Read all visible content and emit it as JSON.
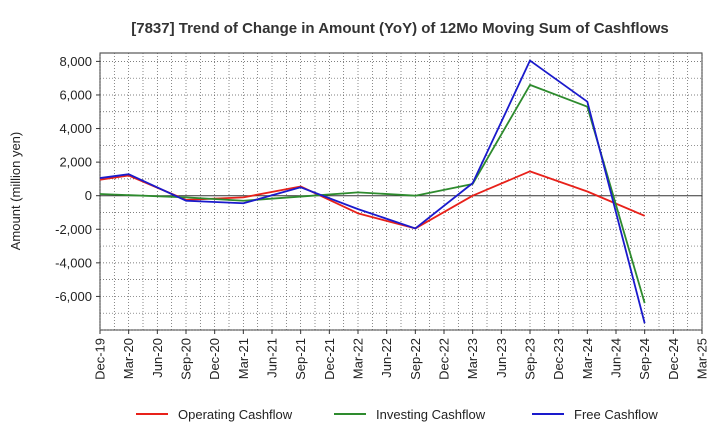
{
  "chart_data": {
    "type": "line",
    "title": "[7837]  Trend of Change in Amount (YoY) of 12Mo Moving Sum of Cashflows",
    "xlabel": "",
    "ylabel": "Amount (million yen)",
    "ylim": [
      -8000,
      8500
    ],
    "yticks": [
      8000,
      6000,
      4000,
      2000,
      0,
      -2000,
      -4000,
      -6000
    ],
    "ytick_labels": [
      "8,000",
      "6,000",
      "4,000",
      "2,000",
      "0",
      "-2,000",
      "-4,000",
      "-6,000"
    ],
    "categories": [
      "Dec-19",
      "Mar-20",
      "Jun-20",
      "Sep-20",
      "Dec-20",
      "Mar-21",
      "Jun-21",
      "Sep-21",
      "Dec-21",
      "Mar-22",
      "Jun-22",
      "Sep-22",
      "Dec-22",
      "Mar-23",
      "Jun-23",
      "Sep-23",
      "Dec-23",
      "Mar-24",
      "Jun-24",
      "Sep-24",
      "Dec-24",
      "Mar-25"
    ],
    "grid": true,
    "legend_position": "bottom",
    "series": [
      {
        "name": "Operating Cashflow",
        "color": "#e8211a",
        "values": [
          950,
          1200,
          null,
          -250,
          null,
          -100,
          null,
          550,
          null,
          -1050,
          null,
          -1950,
          null,
          0,
          null,
          1450,
          null,
          250,
          null,
          -1200,
          null,
          null
        ]
      },
      {
        "name": "Investing Cashflow",
        "color": "#2e8b2e",
        "values": [
          100,
          null,
          null,
          -100,
          null,
          -300,
          null,
          -50,
          null,
          200,
          null,
          0,
          null,
          700,
          null,
          6600,
          null,
          5300,
          null,
          -6400,
          null,
          null
        ]
      },
      {
        "name": "Free Cashflow",
        "color": "#1a1acc",
        "values": [
          1050,
          1280,
          null,
          -300,
          null,
          -450,
          null,
          500,
          null,
          -800,
          null,
          -1950,
          null,
          750,
          null,
          8050,
          null,
          5600,
          null,
          -7600,
          null,
          null
        ]
      }
    ]
  }
}
